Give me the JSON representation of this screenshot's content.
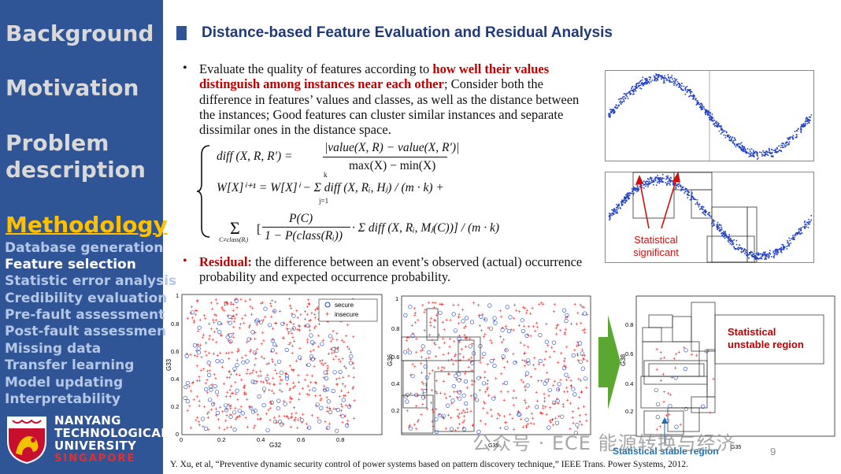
{
  "sidebar": {
    "sections": [
      "Background",
      "Motivation",
      "Problem",
      "description",
      "Methodology"
    ],
    "items": [
      "Database generation",
      "Feature selection",
      "Statistic error analysis",
      "Credibility evaluation",
      "Pre-fault assessment",
      "Post-fault assessment",
      "Missing data",
      "Transfer learning",
      "Model updating",
      "Interpretability"
    ],
    "active_item": "Feature selection",
    "logo": {
      "line1": "NANYANG",
      "line2": "TECHNOLOGICAL",
      "line3": "UNIVERSITY",
      "line4": "SINGAPORE"
    }
  },
  "slide": {
    "title": "Distance-based Feature Evaluation and Residual Analysis",
    "bullet1": {
      "lead": "Evaluate the quality of features according to ",
      "highlight": "how well their values distinguish among instances near each other",
      "rest": "; Consider both the difference in features’ values and classes, as well as the distance between the instances; Good features can cluster similar instances and separate dissimilar ones in the distance space."
    },
    "bullet2": {
      "highlight": "Residual:",
      "rest": " the difference between an event’s observed (actual) occurrence probability and expected occurrence probability."
    },
    "page_number": "9",
    "citation": "Y. Xu, et al, “Preventive dynamic security control of power systems based on pattern discovery technique,” IEEE Trans. Power Systems, 2012."
  },
  "equations": {
    "line1_lhs": "diff (X, R, R′) =",
    "line1_num": "|value(X, R) − value(X, R′)|",
    "line1_den": "max(X) − min(X)",
    "line2": "W[X]ⁱ⁺¹ = W[X]ⁱ − Σ diff (X, Rᵢ, Hⱼ) / (m · k) +",
    "line3_sum_sub": "C≠class(Rᵢ)",
    "line3_num": "P(C)",
    "line3_den": "1 − P(class(Rᵢ))",
    "line3_rest": "· Σ diff (X, Rᵢ, Mⱼ(C))] / (m · k)",
    "sum_top": "k",
    "sum_bot": "j=1"
  },
  "figures": {
    "sine_bottom_label": "Statistical significant",
    "scatter1": {
      "ylabel": "G33",
      "xlabel": "G32",
      "legend": [
        "secure",
        "insecure"
      ],
      "xticks": [
        "0",
        "0.2",
        "0.4",
        "0.6",
        "0.8"
      ],
      "yticks": [
        "0",
        "0.2",
        "0.4",
        "0.6",
        "0.8",
        "1"
      ]
    },
    "scatter2": {
      "ylabel": "G36",
      "xlabel": "G35",
      "xticks": [
        "0",
        "0.2",
        "0.4",
        "0.6",
        "0.8"
      ],
      "yticks": [
        "0.2",
        "0.4",
        "0.6",
        "0.8",
        "1"
      ]
    },
    "scatter3": {
      "ylabel": "G38",
      "xlabel": "G35",
      "unstable_label": "Statistical unstable region",
      "stable_label": "Statistical stable region",
      "yticks": [
        "0.2",
        "0.4",
        "0.6",
        "0.8"
      ]
    }
  },
  "watermark": "公众号 · ECE 能源转换与经济",
  "colors": {
    "sidebar": "#2f5597",
    "accent": "#ffc000",
    "highlight": "#c00000",
    "title": "#1f3a7a",
    "marker_blue": "#2040c0",
    "marker_red": "#e02020",
    "arrow_green": "#5aa832"
  }
}
